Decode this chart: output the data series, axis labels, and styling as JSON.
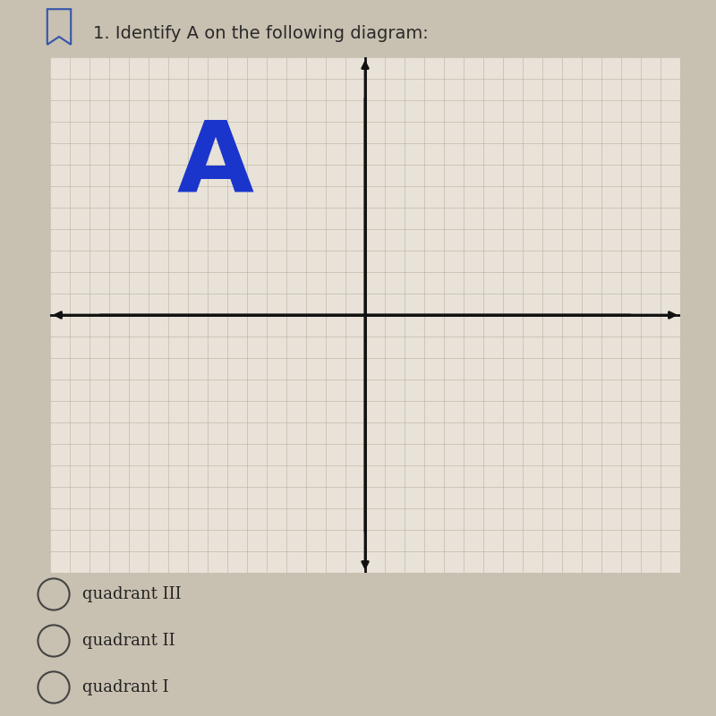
{
  "title": "1. Identify A on the following diagram:",
  "title_fontsize": 14,
  "title_color": "#2a2a2a",
  "background_color": "#c8c0b0",
  "grid_bg_color": "#e8e2d8",
  "grid_color": "#b8b0a0",
  "axis_color": "#111111",
  "A_text": "A",
  "A_x": -3.8,
  "A_y": 3.5,
  "A_fontsize": 80,
  "A_color": "#1a35cc",
  "choices": [
    "quadrant III",
    "quadrant II",
    "quadrant I"
  ],
  "choice_fontsize": 13,
  "choice_color": "#222222",
  "xlim": [
    -8,
    8
  ],
  "ylim": [
    -6,
    6
  ],
  "axis_lw": 2.0,
  "grid_step": 0.5
}
